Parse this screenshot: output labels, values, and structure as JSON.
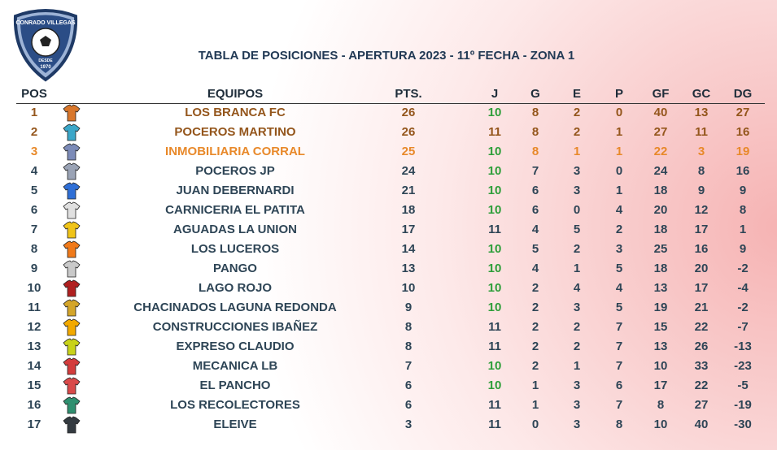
{
  "logo": {
    "name": "CONRADO VILLEGAS",
    "since": "DESDE",
    "year": "1970"
  },
  "header": {
    "title": "TABLA DE POSICIONES - APERTURA 2023 - 11º FECHA - ZONA 1"
  },
  "table": {
    "columns": [
      "POS",
      "EQUIPOS",
      "PTS.",
      "J",
      "G",
      "E",
      "P",
      "GF",
      "GC",
      "DG"
    ],
    "rows": [
      [
        1,
        "LOS BRANCA FC",
        26,
        10,
        8,
        2,
        0,
        40,
        13,
        27
      ],
      [
        2,
        "POCEROS MARTINO",
        26,
        11,
        8,
        2,
        1,
        27,
        11,
        16
      ],
      [
        3,
        "INMOBILIARIA CORRAL",
        25,
        10,
        8,
        1,
        1,
        22,
        3,
        19
      ],
      [
        4,
        "POCEROS JP",
        24,
        10,
        7,
        3,
        0,
        24,
        8,
        16
      ],
      [
        5,
        "JUAN DEBERNARDI",
        21,
        10,
        6,
        3,
        1,
        18,
        9,
        9
      ],
      [
        6,
        "CARNICERIA EL PATITA",
        18,
        10,
        6,
        0,
        4,
        20,
        12,
        8
      ],
      [
        7,
        "AGUADAS LA UNION",
        17,
        11,
        4,
        5,
        2,
        18,
        17,
        1
      ],
      [
        8,
        "LOS LUCEROS",
        14,
        10,
        5,
        2,
        3,
        25,
        16,
        9
      ],
      [
        9,
        "PANGO",
        13,
        10,
        4,
        1,
        5,
        18,
        20,
        -2
      ],
      [
        10,
        "LAGO ROJO",
        10,
        10,
        2,
        4,
        4,
        13,
        17,
        -4
      ],
      [
        11,
        "CHACINADOS LAGUNA REDONDA",
        9,
        10,
        2,
        3,
        5,
        19,
        21,
        -2
      ],
      [
        12,
        "CONSTRUCCIONES IBAÑEZ",
        8,
        11,
        2,
        2,
        7,
        15,
        22,
        -7
      ],
      [
        13,
        "EXPRESO CLAUDIO",
        8,
        11,
        2,
        2,
        7,
        13,
        26,
        -13
      ],
      [
        14,
        "MECANICA LB",
        7,
        10,
        2,
        1,
        7,
        10,
        33,
        -23
      ],
      [
        15,
        "EL PANCHO",
        6,
        10,
        1,
        3,
        6,
        17,
        22,
        -5
      ],
      [
        16,
        "LOS RECOLECTORES",
        6,
        11,
        1,
        3,
        7,
        8,
        27,
        -19
      ],
      [
        17,
        "ELEIVE",
        3,
        11,
        0,
        3,
        8,
        10,
        40,
        -30
      ]
    ]
  }
}
